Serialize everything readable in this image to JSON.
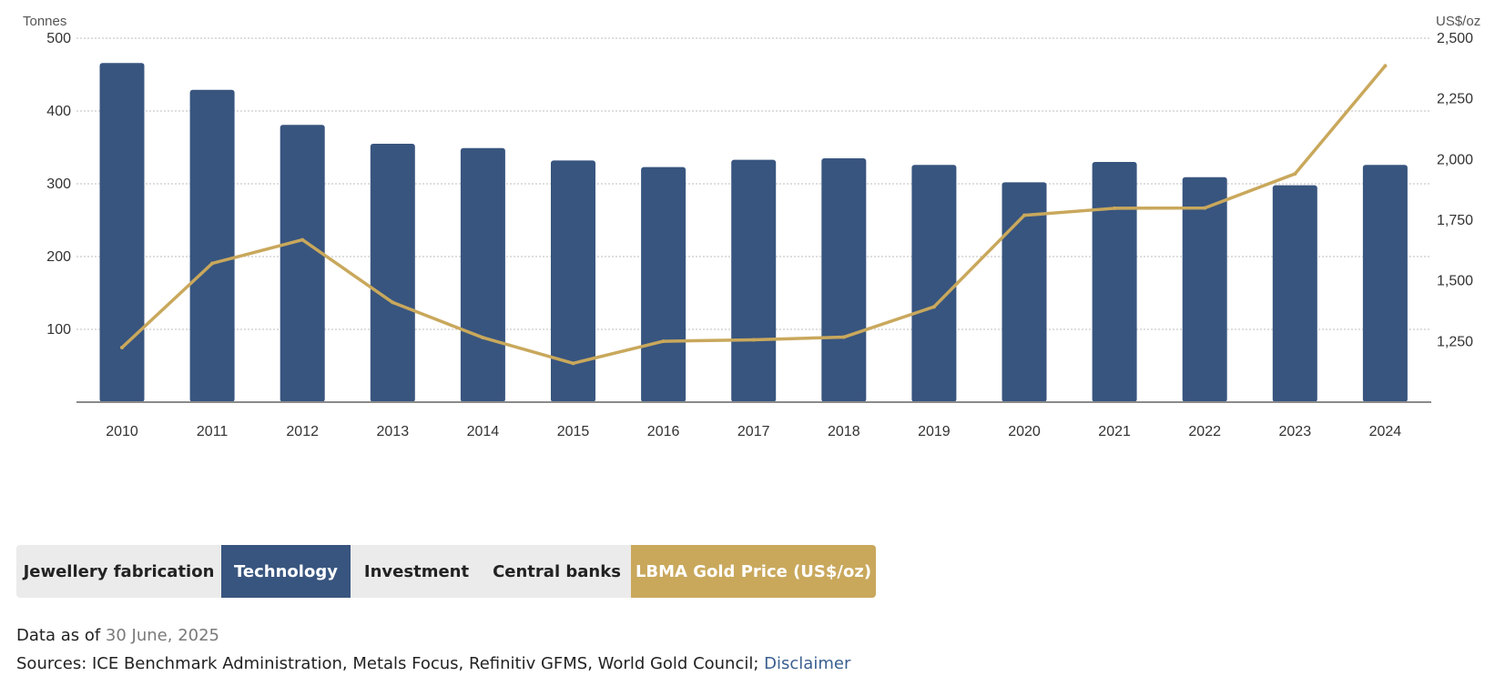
{
  "chart_data": {
    "type": "bar",
    "categories": [
      "2010",
      "2011",
      "2012",
      "2013",
      "2014",
      "2015",
      "2016",
      "2017",
      "2018",
      "2019",
      "2020",
      "2021",
      "2022",
      "2023",
      "2024"
    ],
    "series": [
      {
        "name": "Technology",
        "type": "bar",
        "axis": "left",
        "color": "#38557f",
        "values": [
          466,
          429,
          381,
          355,
          349,
          332,
          323,
          333,
          335,
          326,
          302,
          330,
          309,
          298,
          326
        ]
      },
      {
        "name": "LBMA Gold Price (US$/oz)",
        "type": "line",
        "axis": "right",
        "color": "#c9a85c",
        "values": [
          1225,
          1572,
          1669,
          1411,
          1266,
          1160,
          1251,
          1257,
          1268,
          1393,
          1770,
          1799,
          1800,
          1941,
          2386
        ]
      }
    ],
    "y_left": {
      "label": "Tonnes",
      "min": 0,
      "max": 500,
      "ticks": [
        100,
        200,
        300,
        400,
        500
      ],
      "tick_labels": [
        "100",
        "200",
        "300",
        "400",
        "500"
      ]
    },
    "y_right": {
      "label": "US$/oz",
      "min": 1000,
      "max": 2500,
      "ticks": [
        1250,
        1500,
        1750,
        2000,
        2250,
        2500
      ],
      "tick_labels": [
        "1,250",
        "1,500",
        "1,750",
        "2,000",
        "2,250",
        "2,500"
      ]
    },
    "grid": true
  },
  "tabs": [
    {
      "label": "Jewellery fabrication",
      "active": false
    },
    {
      "label": "Technology",
      "active": true
    },
    {
      "label": "Investment",
      "active": false
    },
    {
      "label": "Central banks",
      "active": false
    },
    {
      "label": "LBMA Gold Price (US$/oz)",
      "active": true
    }
  ],
  "colors": {
    "navy": "#38557f",
    "gold": "#c9a85c",
    "tab_bg": "#ebebeb"
  },
  "footer": {
    "data_as_of_label": "Data as of",
    "data_as_of_date": "30 June, 2025",
    "sources_text": "Sources: ICE Benchmark Administration, Metals Focus, Refinitiv GFMS, World Gold Council;",
    "disclaimer_link": "Disclaimer"
  }
}
